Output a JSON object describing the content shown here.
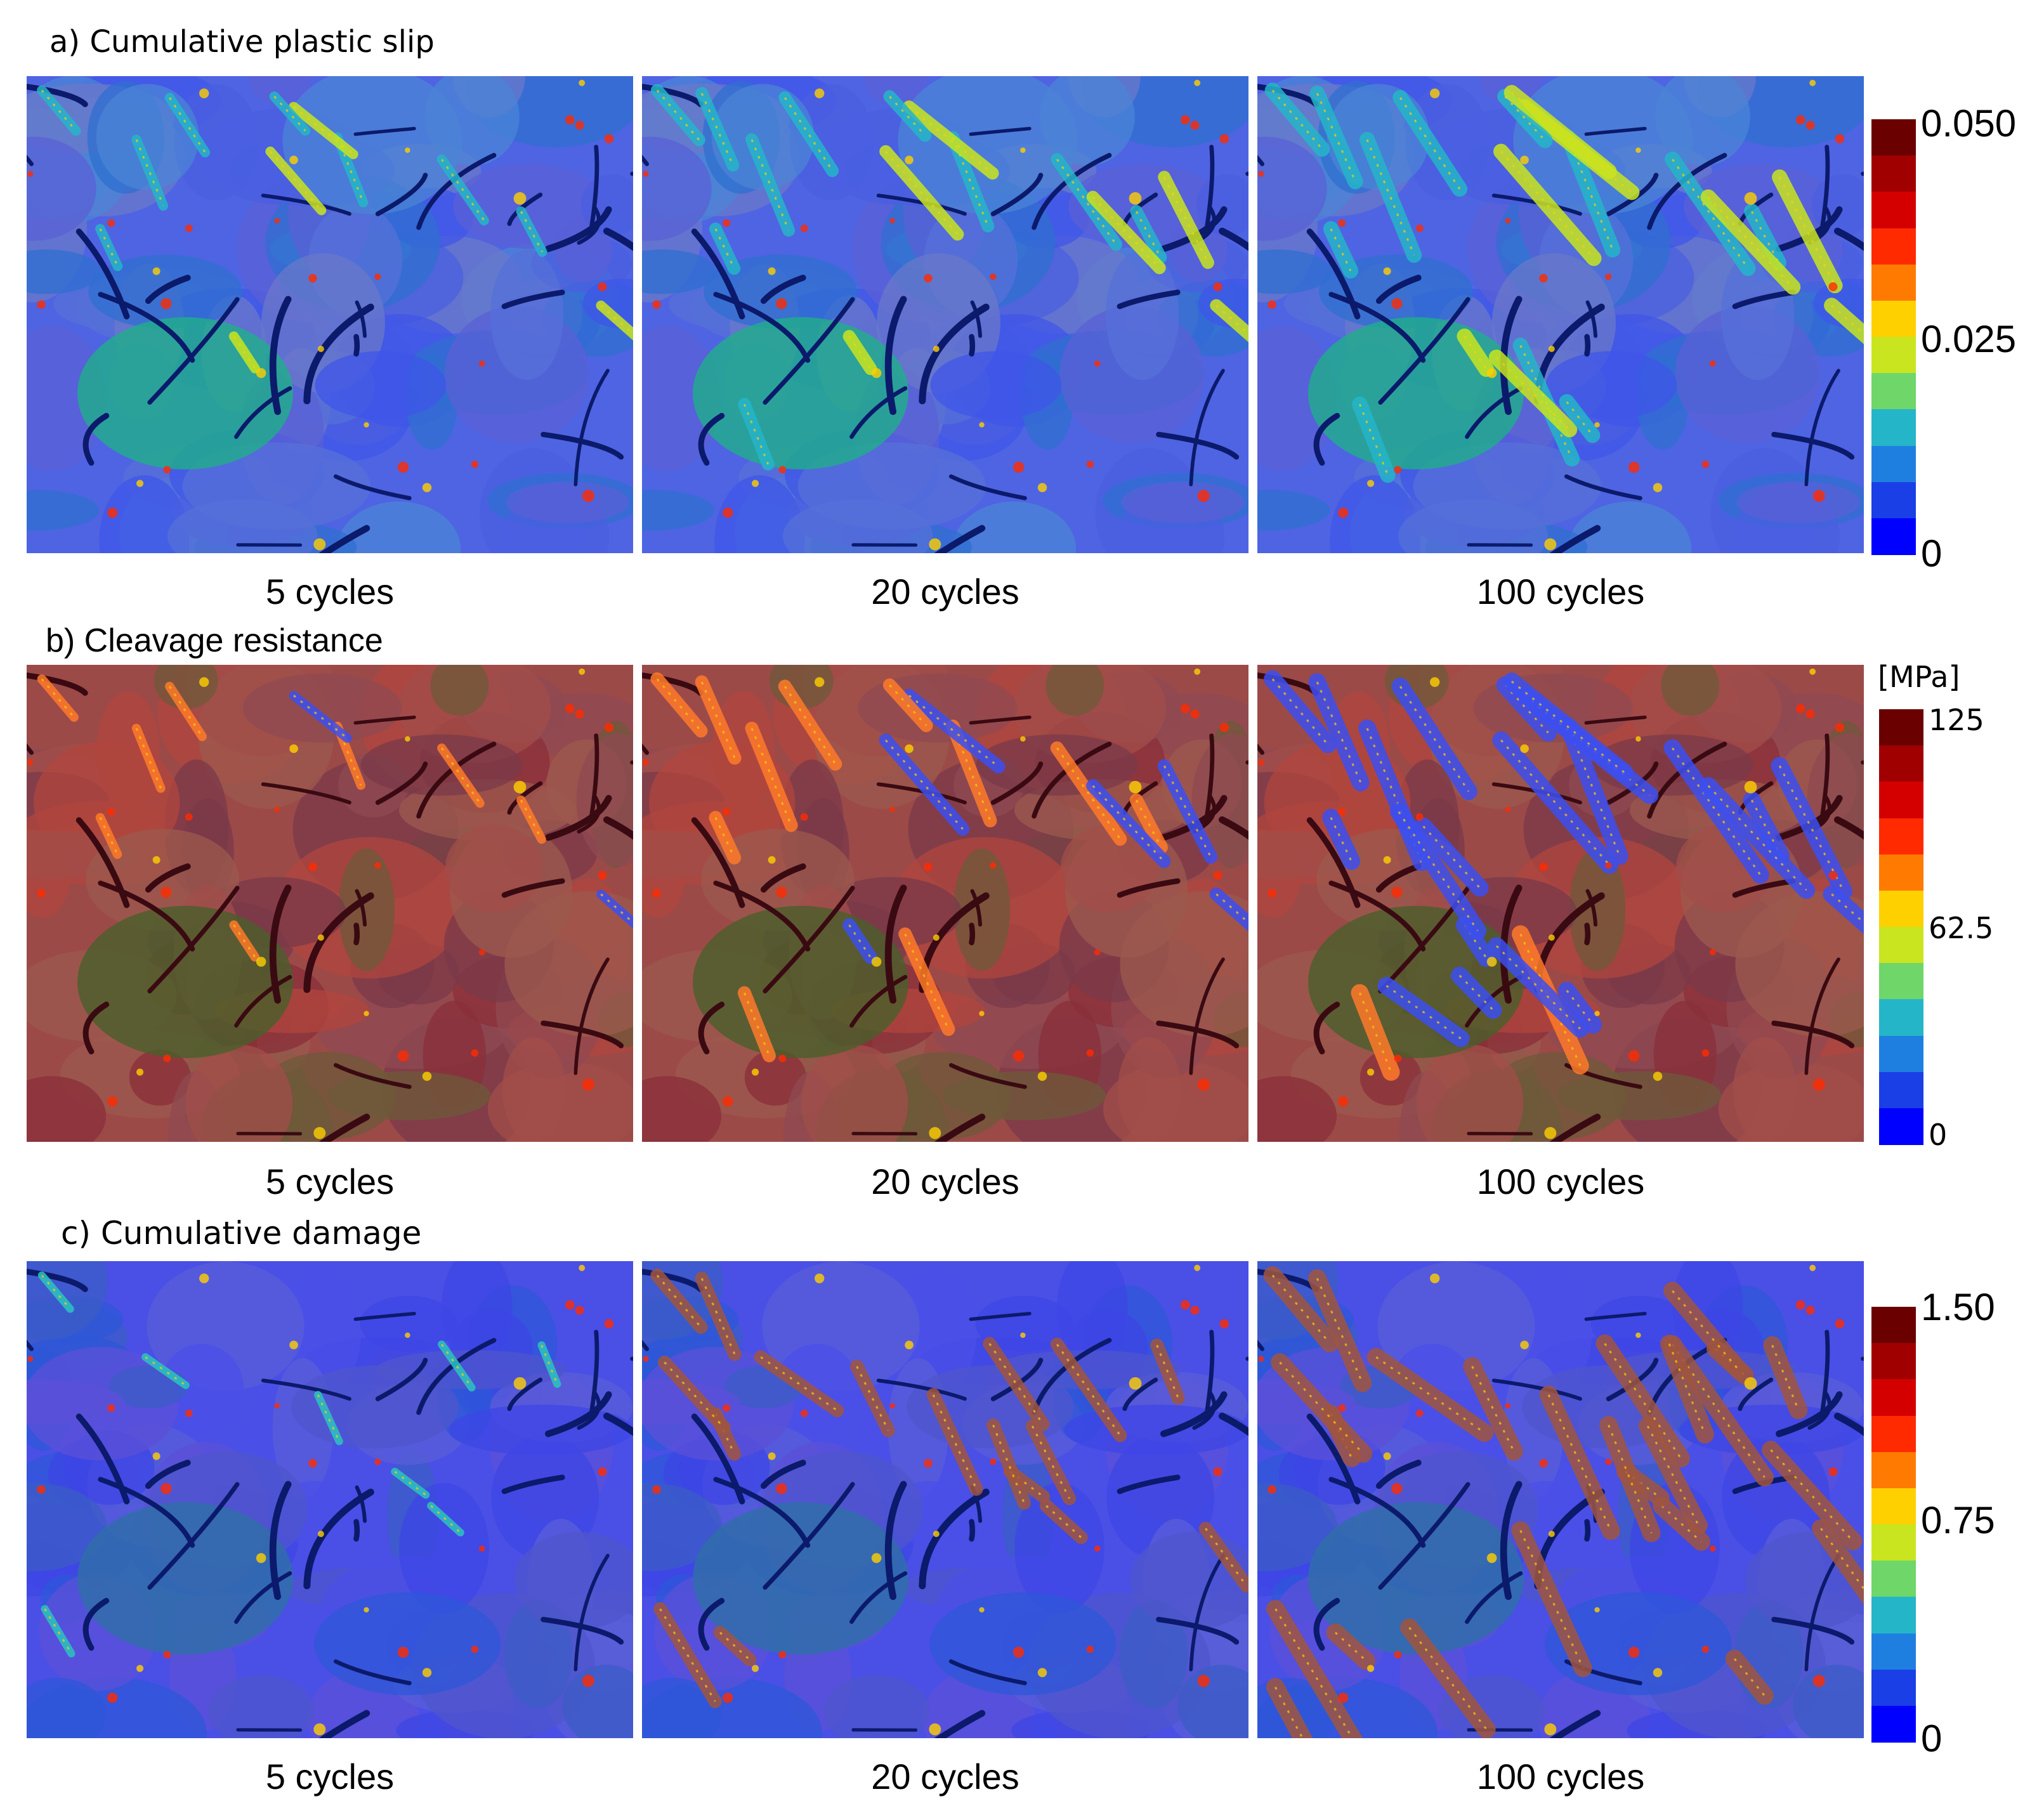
{
  "colormap": [
    "#0000ff",
    "#1a3fe6",
    "#1f7fe0",
    "#25b5c9",
    "#6fd66a",
    "#c9e51f",
    "#ffd000",
    "#ff7a00",
    "#ff2a00",
    "#d40000",
    "#a00000",
    "#6a0000"
  ],
  "sections": [
    {
      "title": "a) Cumulative plastic slip",
      "captions": [
        "5 cycles",
        "20 cycles",
        "100 cycles"
      ],
      "colorbar": {
        "max": "0.050",
        "mid": "0.025",
        "min": "0",
        "unit": ""
      },
      "base_color": "#4f64e2",
      "intensity": [
        0.25,
        0.45,
        0.65
      ]
    },
    {
      "title": "b) Cleavage resistance",
      "captions": [
        "5 cycles",
        "20 cycles",
        "100 cycles"
      ],
      "colorbar": {
        "max": "125",
        "mid": "62.5",
        "min": "0",
        "unit": "[MPa]"
      },
      "base_color": "#9b4a48",
      "intensity": [
        0.2,
        0.5,
        0.8
      ]
    },
    {
      "title": "c) Cumulative damage",
      "captions": [
        "5 cycles",
        "20 cycles",
        "100 cycles"
      ],
      "colorbar": {
        "max": "1.50",
        "mid": "0.75",
        "min": "0",
        "unit": ""
      },
      "base_color": "#4a4fe6",
      "intensity": [
        0.1,
        0.5,
        0.85
      ]
    }
  ]
}
